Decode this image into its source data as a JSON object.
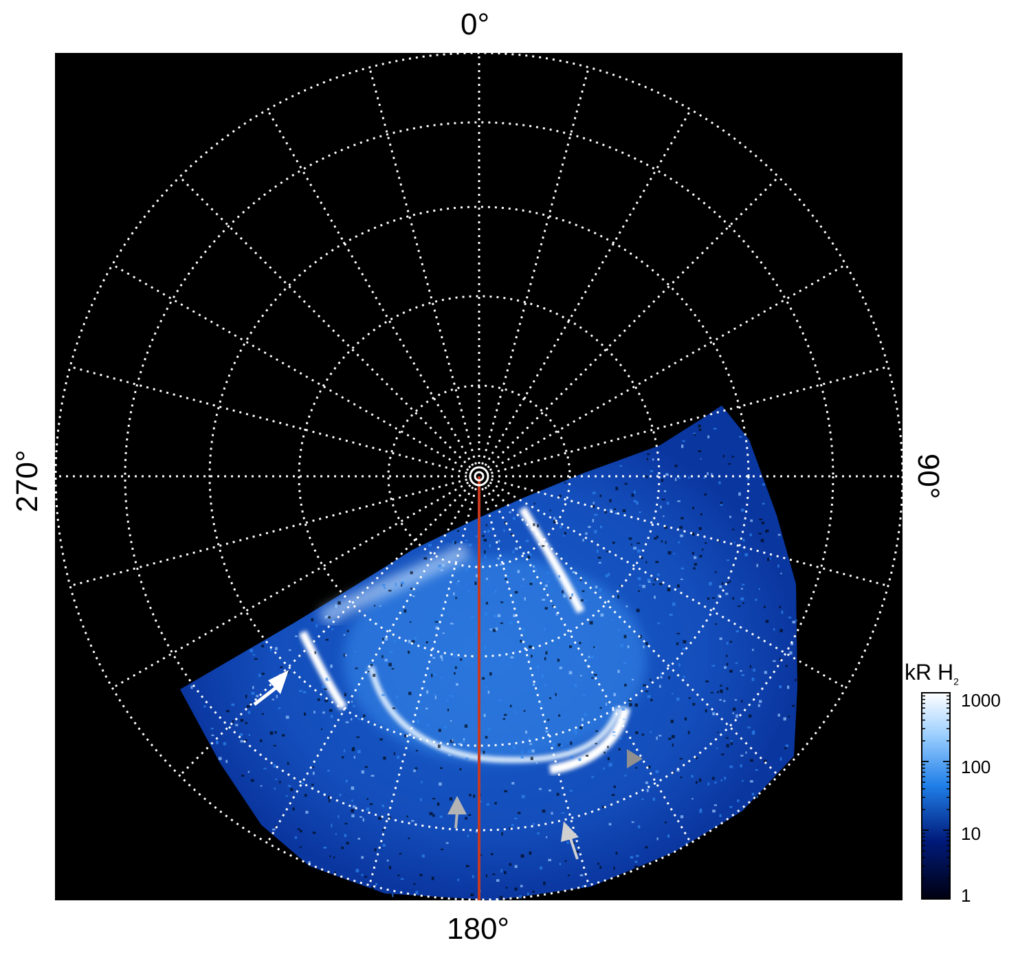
{
  "figure": {
    "labels": {
      "top": "0°",
      "bottom": "180°",
      "left": "270°",
      "right": "90°"
    },
    "colorbar": {
      "title": "kR H",
      "title_subscript": "2",
      "ticks": [
        "1000",
        "100",
        "10",
        "1"
      ],
      "scale": "log",
      "colors": [
        "#000010",
        "#001a7a",
        "#1f7fe8",
        "#9fd0ff",
        "#ffffff"
      ]
    },
    "colors": {
      "background": "#000000",
      "grid": "#ffffff",
      "meridian": "#c63a1f",
      "arrow_white": "#ffffff",
      "arrow_grey": "#b4b4b4"
    }
  }
}
